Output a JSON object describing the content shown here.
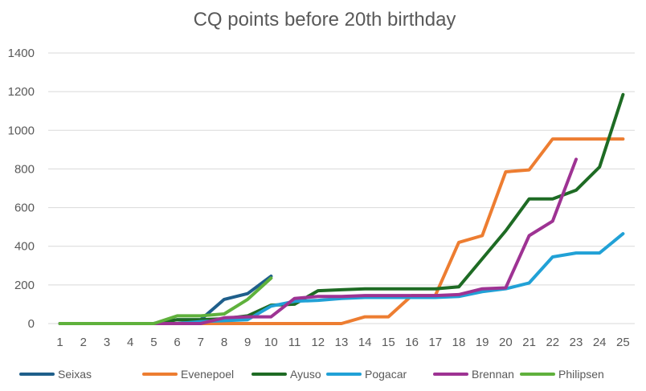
{
  "chart_data": {
    "type": "line",
    "title": "CQ points before 20th birthday",
    "xlabel": "",
    "ylabel": "",
    "x": [
      1,
      2,
      3,
      4,
      5,
      6,
      7,
      8,
      9,
      10,
      11,
      12,
      13,
      14,
      15,
      16,
      17,
      18,
      19,
      20,
      21,
      22,
      23,
      24,
      25
    ],
    "ylim": [
      0,
      1400
    ],
    "yticks": [
      0,
      200,
      400,
      600,
      800,
      1000,
      1200,
      1400
    ],
    "grid": true,
    "legend_position": "bottom",
    "series": [
      {
        "name": "Seixas",
        "color": "#1f5f8b",
        "values": [
          0,
          0,
          0,
          0,
          0,
          20,
          20,
          125,
          155,
          245,
          null,
          null,
          null,
          null,
          null,
          null,
          null,
          null,
          null,
          null,
          null,
          null,
          null,
          null,
          null
        ]
      },
      {
        "name": "Evenepoel",
        "color": "#ed7d31",
        "values": [
          0,
          0,
          0,
          0,
          0,
          0,
          0,
          0,
          0,
          0,
          0,
          0,
          0,
          35,
          35,
          145,
          145,
          420,
          455,
          785,
          795,
          955,
          955,
          955,
          955
        ]
      },
      {
        "name": "Ayuso",
        "color": "#1e6b24",
        "values": [
          0,
          0,
          0,
          0,
          0,
          20,
          20,
          25,
          40,
          95,
          100,
          170,
          175,
          180,
          180,
          180,
          180,
          190,
          335,
          480,
          645,
          645,
          690,
          810,
          1185
        ]
      },
      {
        "name": "Pogacar",
        "color": "#21a1d6",
        "values": [
          0,
          0,
          0,
          0,
          0,
          0,
          10,
          15,
          20,
          90,
          115,
          120,
          130,
          135,
          135,
          135,
          135,
          140,
          165,
          180,
          210,
          345,
          365,
          365,
          465
        ]
      },
      {
        "name": "Brennan",
        "color": "#9e3393",
        "values": [
          0,
          0,
          0,
          0,
          0,
          0,
          0,
          30,
          35,
          35,
          130,
          140,
          140,
          145,
          145,
          145,
          145,
          150,
          180,
          185,
          455,
          530,
          850,
          null,
          null
        ]
      },
      {
        "name": "Philipsen",
        "color": "#5fb13c",
        "values": [
          0,
          0,
          0,
          0,
          0,
          40,
          40,
          50,
          125,
          235,
          null,
          null,
          null,
          null,
          null,
          null,
          null,
          null,
          null,
          null,
          null,
          null,
          null,
          null,
          null
        ]
      }
    ]
  }
}
